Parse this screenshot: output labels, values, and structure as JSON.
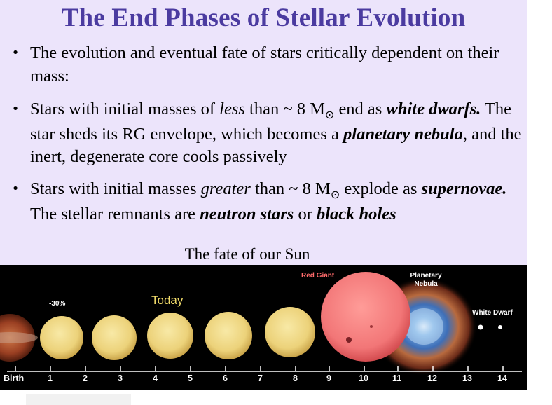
{
  "slide": {
    "title": "The End Phases of Stellar Evolution",
    "bullets": [
      {
        "pre": "The evolution and eventual fate of stars critically dependent on their mass:"
      },
      {
        "a": "Stars with initial masses of ",
        "em1": "less",
        "b": " than ~ 8 M",
        "sub": "⊙",
        "c": " end as ",
        "bi1": "white dwarfs.",
        "d": "  The star sheds its RG envelope, which becomes a ",
        "bi2": "planetary nebula",
        "e": ", and the inert, degenerate core cools passively"
      },
      {
        "a": "Stars with initial masses ",
        "em1": "greater",
        "b": " than ~ 8 M",
        "sub": "⊙",
        "c": " explode as ",
        "bi1": "supernovae.",
        "d": "  The stellar remnants are ",
        "bi2": "neutron stars",
        "e": " or ",
        "bi3": "black holes"
      }
    ],
    "caption": "The fate of our Sun"
  },
  "timeline": {
    "labels": {
      "minus30": "-30%",
      "today": "Today",
      "red_giant": "Red Giant",
      "planetary_nebula": "Planetary Nebula",
      "white_dwarf": "White Dwarf"
    },
    "ticks": [
      "Birth",
      "1",
      "2",
      "3",
      "4",
      "5",
      "6",
      "7",
      "8",
      "9",
      "10",
      "11",
      "12",
      "13",
      "14"
    ],
    "colors": {
      "sun": "#f2dc8a",
      "red_giant": "#f2797a",
      "background": "#000000",
      "title": "#4b3ba0",
      "slide_bg": "#ece4fb"
    }
  }
}
